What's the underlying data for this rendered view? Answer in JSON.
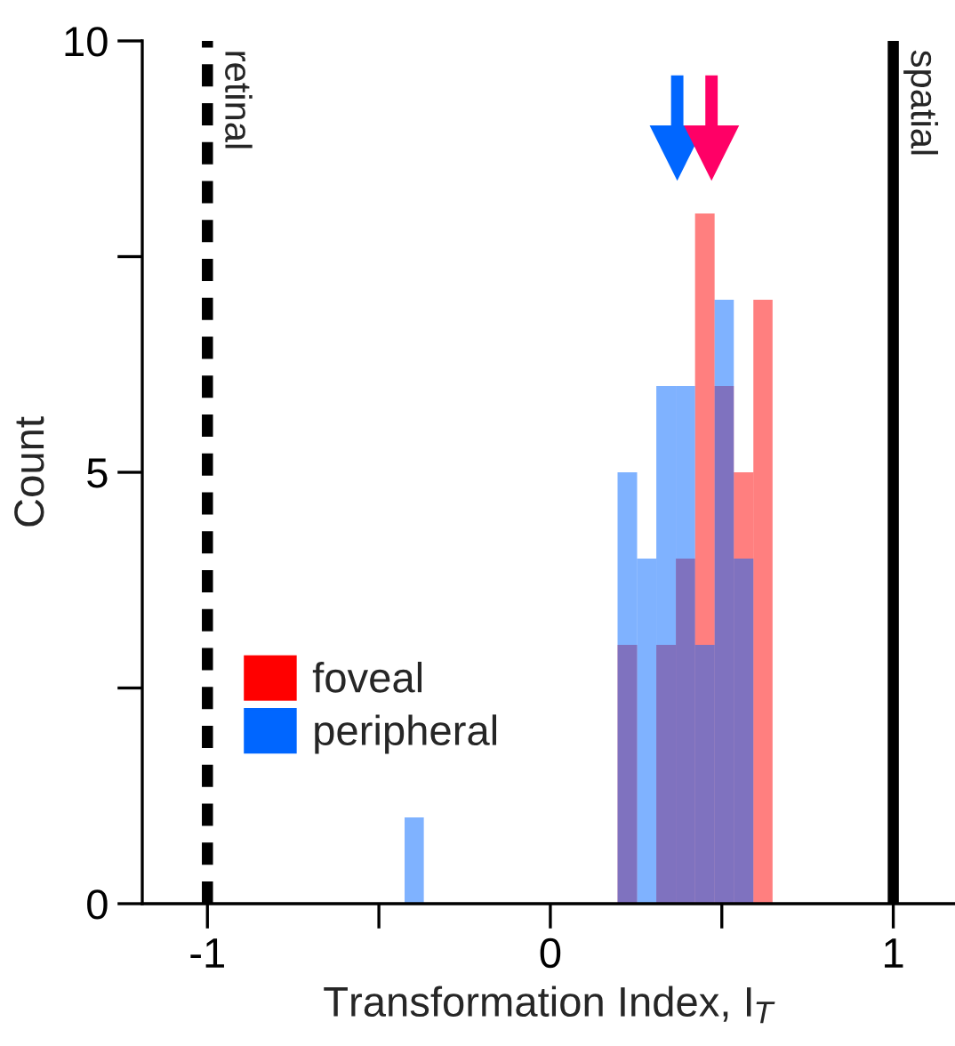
{
  "chart_data": {
    "type": "histogram",
    "xlabel": "Transformation Index, I$_{T}$",
    "ylabel": "Count",
    "bins": [
      -0.425,
      -0.369,
      -0.312,
      -0.256,
      -0.199,
      -0.143,
      -0.086,
      -0.03,
      0.027,
      0.083,
      0.14,
      0.196,
      0.253,
      0.309,
      0.366,
      0.422,
      0.479,
      0.535,
      0.592,
      0.648
    ],
    "series": [
      {
        "name": "foveal",
        "color": "#ff0000",
        "values": [
          0,
          0,
          0,
          0,
          0,
          0,
          0,
          0,
          0,
          0,
          0,
          3,
          0,
          3,
          4,
          8,
          6,
          5,
          7
        ]
      },
      {
        "name": "peripheral",
        "color": "#0066ff",
        "values": [
          1,
          0,
          0,
          0,
          0,
          0,
          0,
          0,
          0,
          0,
          0,
          5,
          4,
          6,
          6,
          3,
          7,
          4,
          0
        ]
      },
      {
        "type": "scatter",
        "color": "#0066ff",
        "marker": "triangle",
        "x": [
          0.37
        ],
        "values": [
          8.7
        ]
      },
      {
        "type": "scatter",
        "color": "#ff0066",
        "marker": "triangle",
        "x": [
          0.47
        ],
        "values": [
          8.7
        ]
      }
    ],
    "xlim": [
      -1.19,
      1.18
    ],
    "ylim": [
      0,
      10
    ],
    "xticks": [
      -1,
      {
        "value": -0.5,
        "label": null
      },
      0,
      {
        "value": 0.5,
        "label": null
      },
      1
    ],
    "yticks": [
      0,
      {
        "value": 2.5,
        "label": null
      },
      5,
      {
        "value": 7.5,
        "label": null
      },
      10
    ],
    "ref_lines": [
      {
        "axis": "x",
        "value": -1,
        "label": "retinal",
        "color": "#000000",
        "line_style": "dashed"
      },
      {
        "axis": "x",
        "value": 1,
        "label": "spatial",
        "color": "#000000",
        "line_style": "solid"
      }
    ],
    "legend": "bottom left",
    "grid": false
  }
}
